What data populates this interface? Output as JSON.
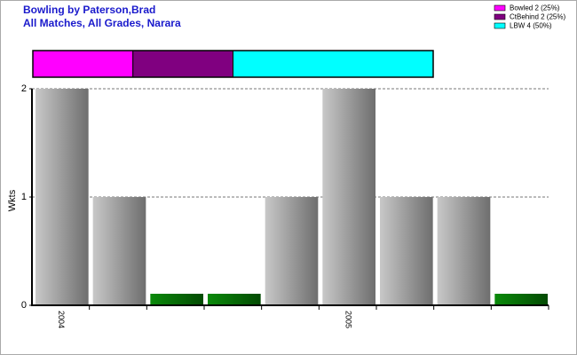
{
  "chart_data": {
    "type": "bar",
    "title": "Bowling by Paterson,Brad",
    "subtitle": "All Matches, All Grades, Narara",
    "y_label": "Wkts",
    "categories": [
      "2004",
      null,
      null,
      null,
      null,
      "2005",
      null,
      null,
      null
    ],
    "values": [
      2,
      1,
      0,
      0,
      1,
      2,
      1,
      1,
      0
    ],
    "color": "#909090",
    "zero_color": "#0a7a0a",
    "ylim": [
      0,
      2
    ],
    "yticks": [
      0,
      1,
      2
    ],
    "grid": true,
    "breakdown": [
      {
        "label": "Bowled 2 (25%)",
        "value": 25,
        "color": "#ff00ff"
      },
      {
        "label": "CtBehind 2 (25%)",
        "value": 25,
        "color": "#800080"
      },
      {
        "label": "LBW 4 (50%)",
        "value": 50,
        "color": "#00ffff"
      }
    ],
    "legend": "top-right"
  }
}
